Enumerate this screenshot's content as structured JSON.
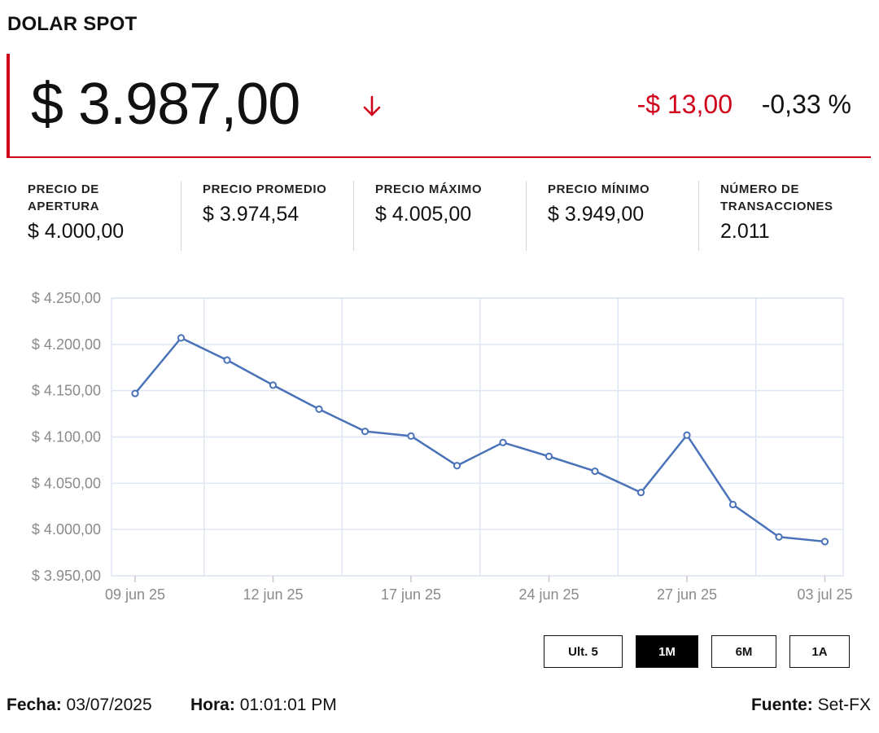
{
  "title": "DOLAR SPOT",
  "price": "$ 3.987,00",
  "direction_icon": "arrow-down-icon",
  "change_abs": "-$ 13,00",
  "change_pct": "-0,33 %",
  "colors": {
    "accent": "#d0021b",
    "series": "#4a72b8",
    "grid": "#dfe6f3"
  },
  "stats": [
    {
      "label": "PRECIO DE APERTURA",
      "value": "$ 4.000,00"
    },
    {
      "label": "PRECIO PROMEDIO",
      "value": "$ 3.974,54"
    },
    {
      "label": "PRECIO MÁXIMO",
      "value": "$ 4.005,00"
    },
    {
      "label": "PRECIO MÍNIMO",
      "value": "$ 3.949,00"
    },
    {
      "label": "NÚMERO DE TRANSACCIONES",
      "value": "2.011"
    }
  ],
  "chart_data": {
    "type": "line",
    "title": "",
    "xlabel": "",
    "ylabel": "",
    "ylim": [
      3950,
      4250
    ],
    "yticks": [
      {
        "value": 4250,
        "label": "$ 4.250,00"
      },
      {
        "value": 4200,
        "label": "$ 4.200,00"
      },
      {
        "value": 4150,
        "label": "$ 4.150,00"
      },
      {
        "value": 4100,
        "label": "$ 4.100,00"
      },
      {
        "value": 4050,
        "label": "$ 4.050,00"
      },
      {
        "value": 4000,
        "label": "$ 4.000,00"
      },
      {
        "value": 3950,
        "label": "$ 3.950,00"
      }
    ],
    "xticks": [
      {
        "index": 0,
        "label": "09 jun 25"
      },
      {
        "index": 3,
        "label": "12 jun 25"
      },
      {
        "index": 6,
        "label": "17 jun 25"
      },
      {
        "index": 9,
        "label": "24 jun 25"
      },
      {
        "index": 12,
        "label": "27 jun 25"
      },
      {
        "index": 15,
        "label": "03 jul 25"
      }
    ],
    "grid": true,
    "series": [
      {
        "name": "Dolar Spot",
        "values": [
          4147,
          4207,
          4183,
          4156,
          4130,
          4106,
          4101,
          4069,
          4094,
          4079,
          4063,
          4040,
          4102,
          4027,
          3992,
          3987
        ]
      }
    ]
  },
  "range": {
    "buttons": [
      {
        "label": "Ult. 5",
        "active": false
      },
      {
        "label": "1M",
        "active": true
      },
      {
        "label": "6M",
        "active": false
      },
      {
        "label": "1A",
        "active": false
      }
    ]
  },
  "footer": {
    "fecha_label": "Fecha:",
    "fecha": "03/07/2025",
    "hora_label": "Hora:",
    "hora": "01:01:01 PM",
    "fuente_label": "Fuente:",
    "fuente": "Set-FX"
  }
}
